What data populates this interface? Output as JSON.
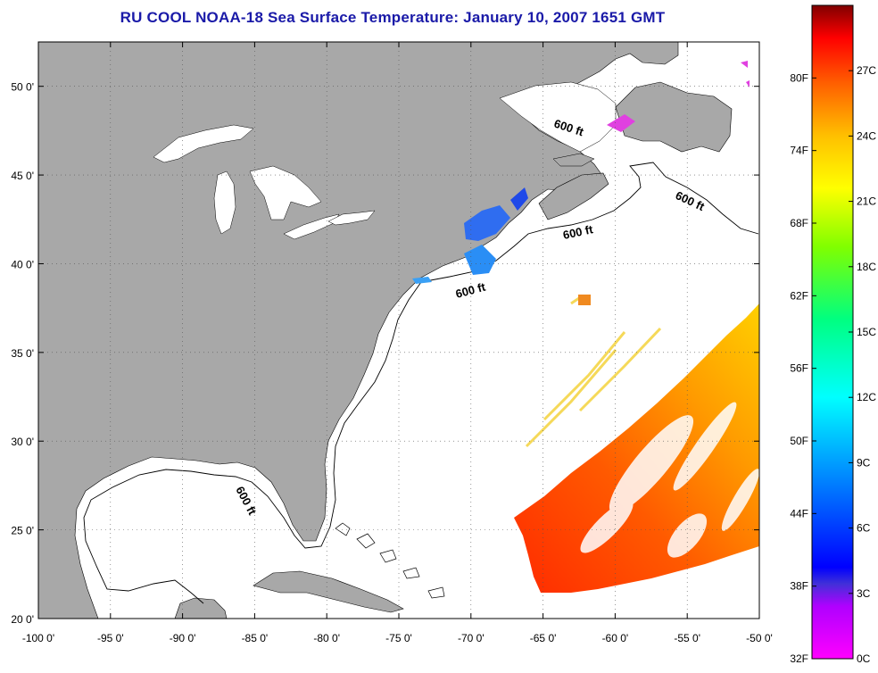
{
  "title": "RU COOL  NOAA-18  Sea Surface Temperature:  January 10, 2007 1651 GMT",
  "map": {
    "lon_range": [
      -100,
      -50
    ],
    "lat_range": [
      20,
      52.5
    ],
    "lon_ticks": [
      "-100 0'",
      "-95 0'",
      "-90 0'",
      "-85 0'",
      "-80 0'",
      "-75 0'",
      "-70 0'",
      "-65 0'",
      "-60 0'",
      "-55 0'",
      "-50 0'"
    ],
    "lat_ticks": [
      "20 0'",
      "25 0'",
      "30 0'",
      "35 0'",
      "40 0'",
      "45 0'",
      "50 0'"
    ],
    "contour_label": "600 ft",
    "land_color": "#a8a8a8",
    "grid": "dotted"
  },
  "colorbar": {
    "fahrenheit": [
      "32F",
      "38F",
      "44F",
      "50F",
      "56F",
      "62F",
      "68F",
      "74F",
      "80F"
    ],
    "celsius": [
      "0C",
      "3C",
      "6C",
      "9C",
      "12C",
      "15C",
      "18C",
      "21C",
      "24C",
      "27C"
    ],
    "colors": [
      "#ff00ff",
      "#8000ff",
      "#0000ff",
      "#0080ff",
      "#00ffff",
      "#00ff80",
      "#80ff00",
      "#ffff00",
      "#ff8000",
      "#ff0000",
      "#800000"
    ]
  }
}
